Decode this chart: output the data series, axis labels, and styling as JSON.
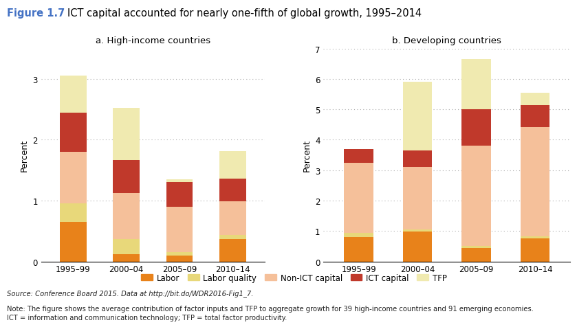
{
  "title_prefix": "Figure 1.7",
  "title_prefix_color": "#4472C4",
  "title_text": "ICT capital accounted for nearly one-fifth of global growth, 1995–2014",
  "title_fontsize": 10.5,
  "subtitle_a": "a. High-income countries",
  "subtitle_b": "b. Developing countries",
  "categories": [
    "1995–99",
    "2000–04",
    "2005–09",
    "2010–14"
  ],
  "components": [
    "Labor",
    "Labor quality",
    "Non-ICT capital",
    "ICT capital",
    "TFP"
  ],
  "colors": {
    "Labor": "#E8821A",
    "Labor quality": "#E8D87A",
    "Non-ICT capital": "#F5C09A",
    "ICT capital": "#C0392B",
    "TFP": "#F0EAB0"
  },
  "high_income": {
    "Labor": [
      0.65,
      0.12,
      0.1,
      0.37
    ],
    "Labor quality": [
      0.3,
      0.25,
      0.05,
      0.07
    ],
    "Non-ICT capital": [
      0.85,
      0.75,
      0.75,
      0.55
    ],
    "ICT capital": [
      0.65,
      0.55,
      0.4,
      0.37
    ],
    "TFP": [
      0.6,
      0.85,
      0.05,
      0.45
    ]
  },
  "developing": {
    "Labor": [
      0.8,
      0.98,
      0.45,
      0.75
    ],
    "Labor quality": [
      0.15,
      0.07,
      0.05,
      0.07
    ],
    "Non-ICT capital": [
      2.3,
      2.05,
      3.3,
      3.6
    ],
    "ICT capital": [
      0.45,
      0.55,
      1.2,
      0.72
    ],
    "TFP": [
      0.0,
      2.25,
      1.65,
      0.4
    ]
  },
  "ylim_a": [
    0,
    3.5
  ],
  "ylim_b": [
    0,
    7.0
  ],
  "yticks_a": [
    0,
    1,
    2,
    3
  ],
  "yticks_b": [
    0,
    1,
    2,
    3,
    4,
    5,
    6,
    7
  ],
  "ylabel": "Percent",
  "source_text": "Source: Conference Board 2015. Data at http://bit.do/WDR2016-Fig1_7.",
  "note_line1": "Note: The figure shows the average contribution of factor inputs and TFP to aggregate growth for 39 high-income countries and 91 emerging economies.",
  "note_line2": "ICT = information and communication technology; TFP = total factor productivity.",
  "bar_width": 0.5,
  "background_color": "#FFFFFF",
  "dotted_grid_color": "#AAAAAA",
  "legend_labels": [
    "Labor",
    "Labor quality",
    "Non-ICT capital",
    "ICT capital",
    "TFP"
  ]
}
